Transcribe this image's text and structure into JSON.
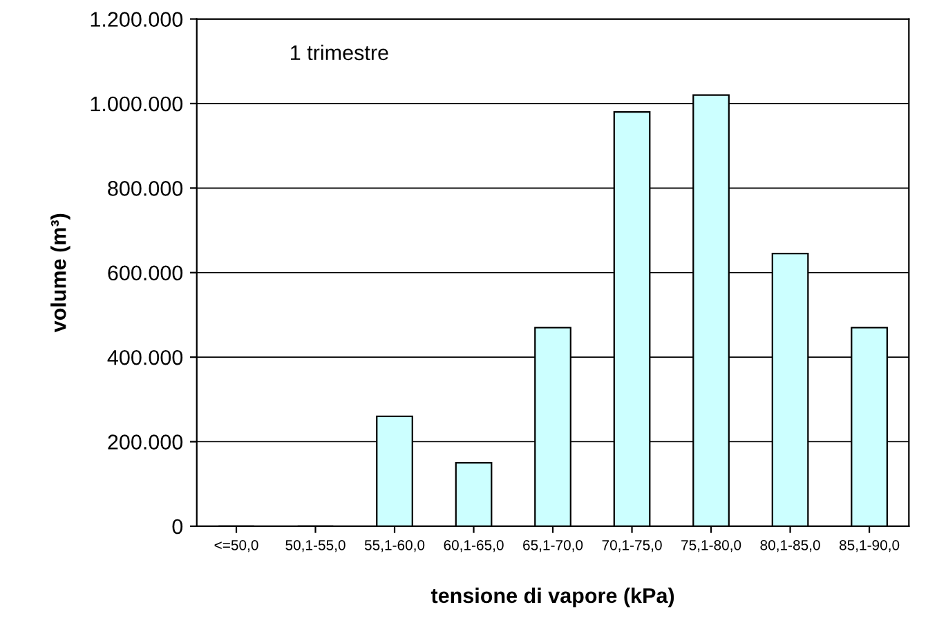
{
  "chart_data": {
    "type": "bar",
    "xlabel": "tensione di vapore (kPa)",
    "ylabel": "volume (m³)",
    "categories": [
      "<=50,0",
      "50,1-55,0",
      "55,1-60,0",
      "60,1-65,0",
      "65,1-70,0",
      "70,1-75,0",
      "75,1-80,0",
      "80,1-85,0",
      "85,1-90,0"
    ],
    "values": [
      0,
      0,
      260000,
      150000,
      470000,
      980000,
      1020000,
      645000,
      470000
    ],
    "color": "#ccffff",
    "ylim": [
      0,
      1200000
    ],
    "yticks": [
      {
        "value": 0,
        "label": "0"
      },
      {
        "value": 200000,
        "label": "200.000"
      },
      {
        "value": 400000,
        "label": "400.000"
      },
      {
        "value": 600000,
        "label": "600.000"
      },
      {
        "value": 800000,
        "label": "800.000"
      },
      {
        "value": 1000000,
        "label": "1.000.000"
      },
      {
        "value": 1200000,
        "label": "1.200.000"
      }
    ],
    "grid": "y",
    "annotations": [
      "1 trimestre"
    ]
  }
}
